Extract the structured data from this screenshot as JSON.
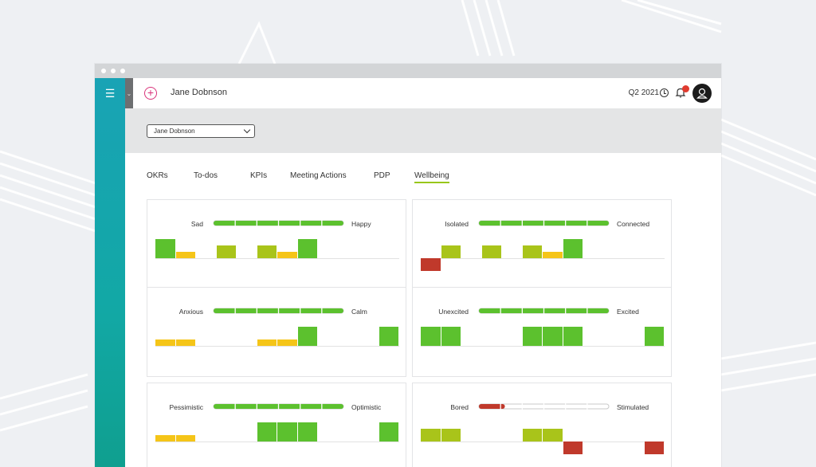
{
  "header": {
    "user_name": "Jane Dobnson",
    "quarter": "Q2 2021",
    "notification_count": ""
  },
  "filter": {
    "selected_user": "Jane Dobnson"
  },
  "tabs": [
    {
      "label": "OKRs",
      "active": false
    },
    {
      "label": "To-dos",
      "active": false
    },
    {
      "label": "KPIs",
      "active": false
    },
    {
      "label": "Meeting Actions",
      "active": false
    },
    {
      "label": "PDP",
      "active": false
    },
    {
      "label": "Wellbeing",
      "active": true
    }
  ],
  "colors": {
    "green": "#5cc12e",
    "lime": "#a9c41a",
    "yellow": "#f5c518",
    "red": "#c0392b",
    "accent_tab": "#98c71a",
    "sidebar": "#12a8a5"
  },
  "wellbeing": [
    {
      "left": "Sad",
      "right": "Happy",
      "scale_level": 1.0,
      "scale_color": "#5cc12e",
      "history": [
        {
          "color": "#5cc12e",
          "level": 3
        },
        {
          "color": "#f5c518",
          "level": 1
        },
        null,
        {
          "color": "#a9c41a",
          "level": 2
        },
        null,
        {
          "color": "#a9c41a",
          "level": 2
        },
        {
          "color": "#f5c518",
          "level": 1
        },
        {
          "color": "#5cc12e",
          "level": 3
        }
      ]
    },
    {
      "left": "Isolated",
      "right": "Connected",
      "scale_level": 1.0,
      "scale_color": "#5cc12e",
      "history": [
        {
          "color": "#c0392b",
          "level": -2
        },
        {
          "color": "#a9c41a",
          "level": 2
        },
        null,
        {
          "color": "#a9c41a",
          "level": 2
        },
        null,
        {
          "color": "#a9c41a",
          "level": 2
        },
        {
          "color": "#f5c518",
          "level": 1
        },
        {
          "color": "#5cc12e",
          "level": 3
        }
      ]
    },
    {
      "left": "Anxious",
      "right": "Calm",
      "scale_level": 1.0,
      "scale_color": "#5cc12e",
      "history": [
        {
          "color": "#f5c518",
          "level": 1
        },
        {
          "color": "#f5c518",
          "level": 1
        },
        null,
        null,
        null,
        {
          "color": "#f5c518",
          "level": 1
        },
        {
          "color": "#f5c518",
          "level": 1
        },
        {
          "color": "#5cc12e",
          "level": 3
        },
        null,
        null,
        null,
        {
          "color": "#5cc12e",
          "level": 3
        }
      ]
    },
    {
      "left": "Unexcited",
      "right": "Excited",
      "scale_level": 1.0,
      "scale_color": "#5cc12e",
      "history": [
        {
          "color": "#5cc12e",
          "level": 3
        },
        {
          "color": "#5cc12e",
          "level": 3
        },
        null,
        null,
        null,
        {
          "color": "#5cc12e",
          "level": 3
        },
        {
          "color": "#5cc12e",
          "level": 3
        },
        {
          "color": "#5cc12e",
          "level": 3
        },
        null,
        null,
        null,
        {
          "color": "#5cc12e",
          "level": 3
        }
      ]
    },
    {
      "left": "Pessimistic",
      "right": "Optimistic",
      "scale_level": 1.0,
      "scale_color": "#5cc12e",
      "history": [
        {
          "color": "#f5c518",
          "level": 1
        },
        {
          "color": "#f5c518",
          "level": 1
        },
        null,
        null,
        null,
        {
          "color": "#5cc12e",
          "level": 3
        },
        {
          "color": "#5cc12e",
          "level": 3
        },
        {
          "color": "#5cc12e",
          "level": 3
        },
        null,
        null,
        null,
        {
          "color": "#5cc12e",
          "level": 3
        }
      ]
    },
    {
      "left": "Bored",
      "right": "Stimulated",
      "scale_level": 0.2,
      "scale_color": "#c0392b",
      "history": [
        {
          "color": "#a9c41a",
          "level": 2
        },
        {
          "color": "#a9c41a",
          "level": 2
        },
        null,
        null,
        null,
        {
          "color": "#a9c41a",
          "level": 2
        },
        {
          "color": "#a9c41a",
          "level": 2
        },
        {
          "color": "#c0392b",
          "level": -2
        },
        null,
        null,
        null,
        {
          "color": "#c0392b",
          "level": -2
        }
      ]
    }
  ]
}
